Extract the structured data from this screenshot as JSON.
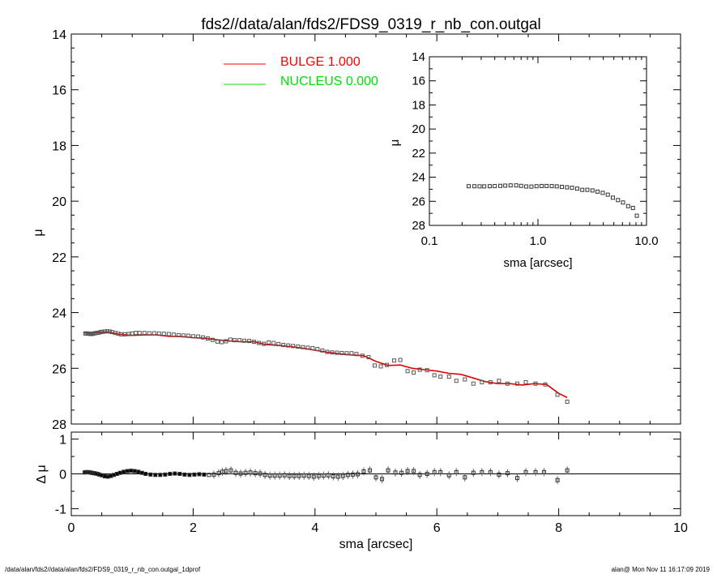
{
  "title": "fds2//data/alan/fds2/FDS9_0319_r_nb_con.outgal",
  "footer": {
    "left": "/data/alan/fds2//data/alan/fds2/FDS9_0319_r_nb_con.outgal_1dprof",
    "right": "alan@  Mon Nov 11 16:17:09 2019"
  },
  "legend": [
    {
      "label": "BULGE  1.000",
      "color": "#ff0000"
    },
    {
      "label": "NUCLEUS  0.000",
      "color": "#00e000"
    }
  ],
  "colors": {
    "model": "#e00000",
    "data": "#555555",
    "axis": "#000000"
  },
  "chart_data": [
    {
      "type": "scatter",
      "panel": "main profile",
      "xlabel": "",
      "ylabel": "μ",
      "xlim": [
        0,
        10
      ],
      "ylim": [
        28,
        14
      ],
      "y_inverted": true,
      "x_ticks": [],
      "y_ticks": [
        "14",
        "16",
        "18",
        "20",
        "22",
        "24",
        "26",
        "28"
      ],
      "series": [
        {
          "name": "",
          "kind": "points",
          "x": [
            0.23,
            0.25,
            0.27,
            0.29,
            0.31,
            0.33,
            0.35,
            0.37,
            0.39,
            0.42,
            0.45,
            0.48,
            0.51,
            0.55,
            0.59,
            0.63,
            0.67,
            0.72,
            0.77,
            0.82,
            0.88,
            0.94,
            1.0,
            1.06,
            1.12,
            1.2,
            1.28,
            1.36,
            1.44,
            1.52,
            1.6,
            1.68,
            1.76,
            1.84,
            1.92,
            2.0,
            2.08,
            2.16,
            2.24,
            2.32,
            2.4,
            2.47,
            2.54,
            2.61,
            2.68,
            2.76,
            2.84,
            2.92,
            3.0,
            3.08,
            3.16,
            3.24,
            3.32,
            3.4,
            3.48,
            3.56,
            3.64,
            3.72,
            3.8,
            3.88,
            3.96,
            4.04,
            4.12,
            4.2,
            4.28,
            4.36,
            4.44,
            4.52,
            4.6,
            4.68,
            4.78,
            4.88,
            4.98,
            5.08,
            5.18,
            5.3,
            5.4,
            5.52,
            5.62,
            5.72,
            5.84,
            5.96,
            6.06,
            6.2,
            6.32,
            6.46,
            6.6,
            6.74,
            6.88,
            7.02,
            7.16,
            7.32,
            7.46,
            7.62,
            7.78,
            7.98,
            8.14
          ],
          "y": [
            24.75,
            24.75,
            24.75,
            24.76,
            24.76,
            24.77,
            24.76,
            24.75,
            24.74,
            24.73,
            24.72,
            24.7,
            24.69,
            24.68,
            24.67,
            24.68,
            24.7,
            24.73,
            24.76,
            24.78,
            24.78,
            24.77,
            24.75,
            24.73,
            24.73,
            24.73,
            24.74,
            24.74,
            24.75,
            24.76,
            24.77,
            24.79,
            24.81,
            24.82,
            24.83,
            24.85,
            24.86,
            24.89,
            24.93,
            24.98,
            25.04,
            25.06,
            25.03,
            24.97,
            24.99,
            24.99,
            25.01,
            25.02,
            25.05,
            25.09,
            25.12,
            25.07,
            25.09,
            25.13,
            25.16,
            25.18,
            25.2,
            25.22,
            25.24,
            25.26,
            25.28,
            25.31,
            25.36,
            25.41,
            25.43,
            25.44,
            25.45,
            25.46,
            25.46,
            25.49,
            25.55,
            25.6,
            25.9,
            25.93,
            25.88,
            25.72,
            25.7,
            26.1,
            26.15,
            26.05,
            26.07,
            26.25,
            26.3,
            26.3,
            26.45,
            26.4,
            26.55,
            26.5,
            26.5,
            26.45,
            26.55,
            26.55,
            26.5,
            26.55,
            26.58,
            26.95,
            27.2
          ]
        },
        {
          "name": "BULGE  1.000",
          "kind": "line",
          "x": [
            0.2,
            0.4,
            0.6,
            0.8,
            1.0,
            1.2,
            1.4,
            1.6,
            1.8,
            2.0,
            2.2,
            2.4,
            2.6,
            2.8,
            3.0,
            3.2,
            3.4,
            3.6,
            3.8,
            4.0,
            4.2,
            4.4,
            4.6,
            4.8,
            5.0,
            5.2,
            5.4,
            5.6,
            5.8,
            6.0,
            6.2,
            6.4,
            6.6,
            6.8,
            7.0,
            7.2,
            7.4,
            7.6,
            7.8,
            8.0,
            8.14
          ],
          "y": [
            24.72,
            24.72,
            24.7,
            24.78,
            24.82,
            24.8,
            24.8,
            24.85,
            24.86,
            24.9,
            24.92,
            24.98,
            25.02,
            25.05,
            25.05,
            25.15,
            25.18,
            25.22,
            25.28,
            25.35,
            25.42,
            25.48,
            25.52,
            25.55,
            25.75,
            25.9,
            25.88,
            26.0,
            26.05,
            26.1,
            26.18,
            26.22,
            26.35,
            26.48,
            26.55,
            26.55,
            26.6,
            26.55,
            26.58,
            26.9,
            27.05
          ]
        },
        {
          "name": "NUCLEUS  0.000",
          "kind": "line",
          "x": [],
          "y": []
        }
      ]
    },
    {
      "type": "scatter",
      "panel": "inset (log radius)",
      "xlabel": "sma [arcsec]",
      "ylabel": "μ",
      "x_scale": "log",
      "xlim": [
        0.1,
        10.0
      ],
      "ylim": [
        28,
        14
      ],
      "y_inverted": true,
      "x_ticks": [
        "0.1",
        "1.0",
        "10.0"
      ],
      "y_ticks": [
        "14",
        "16",
        "18",
        "20",
        "22",
        "24",
        "26",
        "28"
      ],
      "series": [
        {
          "name": "",
          "kind": "points",
          "x": [
            0.23,
            0.26,
            0.29,
            0.32,
            0.36,
            0.4,
            0.45,
            0.5,
            0.56,
            0.63,
            0.7,
            0.78,
            0.87,
            0.97,
            1.08,
            1.2,
            1.34,
            1.49,
            1.66,
            1.85,
            2.06,
            2.3,
            2.56,
            2.85,
            3.18,
            3.54,
            3.95,
            4.4,
            4.9,
            5.46,
            6.08,
            6.77,
            7.5,
            8.14
          ],
          "y": [
            24.75,
            24.75,
            24.76,
            24.76,
            24.75,
            24.74,
            24.72,
            24.7,
            24.68,
            24.68,
            24.72,
            24.77,
            24.78,
            24.75,
            24.73,
            24.73,
            24.74,
            24.76,
            24.8,
            24.84,
            24.88,
            24.95,
            25.05,
            25.05,
            25.1,
            25.2,
            25.3,
            25.45,
            25.7,
            25.9,
            26.1,
            26.4,
            26.55,
            27.2
          ]
        }
      ]
    },
    {
      "type": "scatter",
      "panel": "residuals",
      "xlabel": "sma [arcsec]",
      "ylabel": "Δ μ",
      "xlim": [
        0,
        10
      ],
      "ylim": [
        -1.2,
        1.2
      ],
      "x_ticks": [
        "0",
        "2",
        "4",
        "6",
        "8",
        "10"
      ],
      "y_ticks": [
        "1",
        "0",
        "-1"
      ],
      "series": [
        {
          "name": "",
          "kind": "points",
          "x": [
            0.22,
            0.24,
            0.26,
            0.28,
            0.3,
            0.32,
            0.34,
            0.36,
            0.38,
            0.4,
            0.43,
            0.46,
            0.5,
            0.55,
            0.6,
            0.65,
            0.7,
            0.75,
            0.8,
            0.86,
            0.92,
            0.98,
            1.04,
            1.1,
            1.16,
            1.22,
            1.3,
            1.38,
            1.46,
            1.54,
            1.62,
            1.7,
            1.78,
            1.86,
            1.94,
            2.02,
            2.1,
            2.18,
            2.26,
            2.34,
            2.42,
            2.48,
            2.54,
            2.62,
            2.7,
            2.78,
            2.86,
            2.94,
            3.02,
            3.1,
            3.18,
            3.26,
            3.34,
            3.42,
            3.5,
            3.58,
            3.66,
            3.74,
            3.82,
            3.9,
            3.98,
            4.06,
            4.14,
            4.22,
            4.3,
            4.38,
            4.46,
            4.54,
            4.62,
            4.7,
            4.8,
            4.9,
            5.0,
            5.1,
            5.2,
            5.32,
            5.42,
            5.52,
            5.62,
            5.72,
            5.84,
            5.96,
            6.06,
            6.2,
            6.32,
            6.46,
            6.6,
            6.74,
            6.88,
            7.02,
            7.16,
            7.32,
            7.46,
            7.62,
            7.76,
            7.98,
            8.14
          ],
          "y": [
            0.04,
            0.05,
            0.05,
            0.05,
            0.04,
            0.04,
            0.03,
            0.02,
            0.02,
            0.01,
            0.0,
            -0.02,
            -0.04,
            -0.07,
            -0.08,
            -0.06,
            -0.03,
            0.0,
            0.03,
            0.06,
            0.08,
            0.09,
            0.08,
            0.06,
            0.03,
            0.0,
            -0.02,
            -0.03,
            -0.03,
            -0.02,
            0.0,
            0.01,
            0.0,
            -0.02,
            -0.03,
            -0.02,
            -0.01,
            -0.02,
            -0.03,
            -0.02,
            0.02,
            0.06,
            0.08,
            0.1,
            0.03,
            0.01,
            0.03,
            0.04,
            0.02,
            0.01,
            -0.03,
            -0.05,
            -0.05,
            -0.05,
            -0.04,
            -0.06,
            -0.06,
            -0.06,
            -0.05,
            -0.06,
            -0.08,
            -0.06,
            -0.05,
            -0.04,
            -0.07,
            -0.08,
            -0.06,
            -0.03,
            -0.02,
            -0.01,
            0.07,
            0.1,
            -0.1,
            -0.15,
            0.1,
            0.04,
            0.03,
            0.08,
            0.08,
            -0.03,
            0.0,
            0.05,
            0.05,
            -0.04,
            0.05,
            -0.1,
            0.03,
            0.05,
            0.05,
            -0.02,
            0.02,
            -0.12,
            0.05,
            0.05,
            0.05,
            -0.18,
            0.1
          ]
        }
      ]
    }
  ]
}
